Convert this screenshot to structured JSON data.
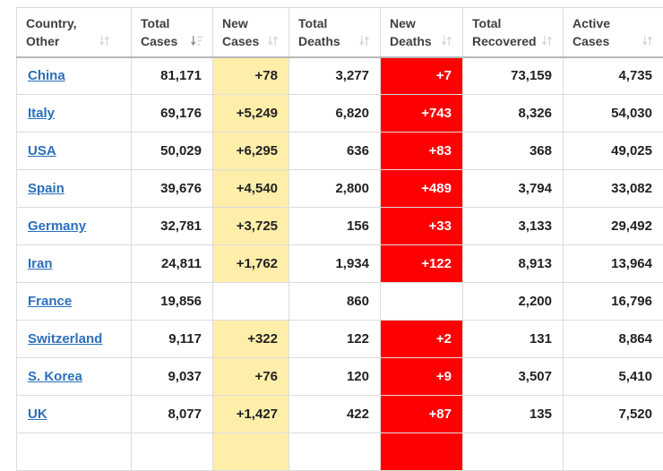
{
  "table": {
    "columns": [
      {
        "id": "country",
        "line1": "Country,",
        "line2": "Other",
        "sort_icon": "sort-both-icon"
      },
      {
        "id": "total_cases",
        "line1": "Total",
        "line2": "Cases",
        "sort_icon": "sort-desc-active-icon"
      },
      {
        "id": "new_cases",
        "line1": "New",
        "line2": "Cases",
        "sort_icon": "sort-both-icon"
      },
      {
        "id": "total_deaths",
        "line1": "Total",
        "line2": "Deaths",
        "sort_icon": "sort-both-icon"
      },
      {
        "id": "new_deaths",
        "line1": "New",
        "line2": "Deaths",
        "sort_icon": "sort-both-icon"
      },
      {
        "id": "total_recovered",
        "line1": "Total",
        "line2": "Recovered",
        "sort_icon": "sort-both-icon"
      },
      {
        "id": "active_cases",
        "line1": "Active",
        "line2": "Cases",
        "sort_icon": "sort-both-icon"
      }
    ],
    "rows": [
      {
        "country": "China",
        "total_cases": "81,171",
        "new_cases": "+78",
        "total_deaths": "3,277",
        "new_deaths": "+7",
        "total_recovered": "73,159",
        "active_cases": "4,735",
        "highlight_new_cases": true,
        "highlight_new_deaths": true
      },
      {
        "country": "Italy",
        "total_cases": "69,176",
        "new_cases": "+5,249",
        "total_deaths": "6,820",
        "new_deaths": "+743",
        "total_recovered": "8,326",
        "active_cases": "54,030",
        "highlight_new_cases": true,
        "highlight_new_deaths": true
      },
      {
        "country": "USA",
        "total_cases": "50,029",
        "new_cases": "+6,295",
        "total_deaths": "636",
        "new_deaths": "+83",
        "total_recovered": "368",
        "active_cases": "49,025",
        "highlight_new_cases": true,
        "highlight_new_deaths": true
      },
      {
        "country": "Spain",
        "total_cases": "39,676",
        "new_cases": "+4,540",
        "total_deaths": "2,800",
        "new_deaths": "+489",
        "total_recovered": "3,794",
        "active_cases": "33,082",
        "highlight_new_cases": true,
        "highlight_new_deaths": true
      },
      {
        "country": "Germany",
        "total_cases": "32,781",
        "new_cases": "+3,725",
        "total_deaths": "156",
        "new_deaths": "+33",
        "total_recovered": "3,133",
        "active_cases": "29,492",
        "highlight_new_cases": true,
        "highlight_new_deaths": true
      },
      {
        "country": "Iran",
        "total_cases": "24,811",
        "new_cases": "+1,762",
        "total_deaths": "1,934",
        "new_deaths": "+122",
        "total_recovered": "8,913",
        "active_cases": "13,964",
        "highlight_new_cases": true,
        "highlight_new_deaths": true
      },
      {
        "country": "France",
        "total_cases": "19,856",
        "new_cases": "",
        "total_deaths": "860",
        "new_deaths": "",
        "total_recovered": "2,200",
        "active_cases": "16,796",
        "highlight_new_cases": false,
        "highlight_new_deaths": false
      },
      {
        "country": "Switzerland",
        "total_cases": "9,117",
        "new_cases": "+322",
        "total_deaths": "122",
        "new_deaths": "+2",
        "total_recovered": "131",
        "active_cases": "8,864",
        "highlight_new_cases": true,
        "highlight_new_deaths": true
      },
      {
        "country": "S. Korea",
        "total_cases": "9,037",
        "new_cases": "+76",
        "total_deaths": "120",
        "new_deaths": "+9",
        "total_recovered": "3,507",
        "active_cases": "5,410",
        "highlight_new_cases": true,
        "highlight_new_deaths": true
      },
      {
        "country": "UK",
        "total_cases": "8,077",
        "new_cases": "+1,427",
        "total_deaths": "422",
        "new_deaths": "+87",
        "total_recovered": "135",
        "active_cases": "7,520",
        "highlight_new_cases": true,
        "highlight_new_deaths": true
      },
      {
        "country": "",
        "total_cases": "",
        "new_cases": "",
        "total_deaths": "",
        "new_deaths": "",
        "total_recovered": "",
        "active_cases": "",
        "highlight_new_cases": true,
        "highlight_new_deaths": true,
        "partial": true
      }
    ],
    "colors": {
      "new_cases_bg": "#FFEEAA",
      "new_deaths_bg": "#FF0000",
      "new_deaths_text": "#FFFFFF",
      "country_link": "#2B6FBB",
      "cell_border": "#DCDCDC",
      "header_bottom_border": "#B7B7B7",
      "header_text": "#3F3F3F",
      "number_text": "#222222",
      "sort_icon_inactive": "#D9D9D9",
      "sort_icon_active": "#8F8F8F"
    }
  }
}
